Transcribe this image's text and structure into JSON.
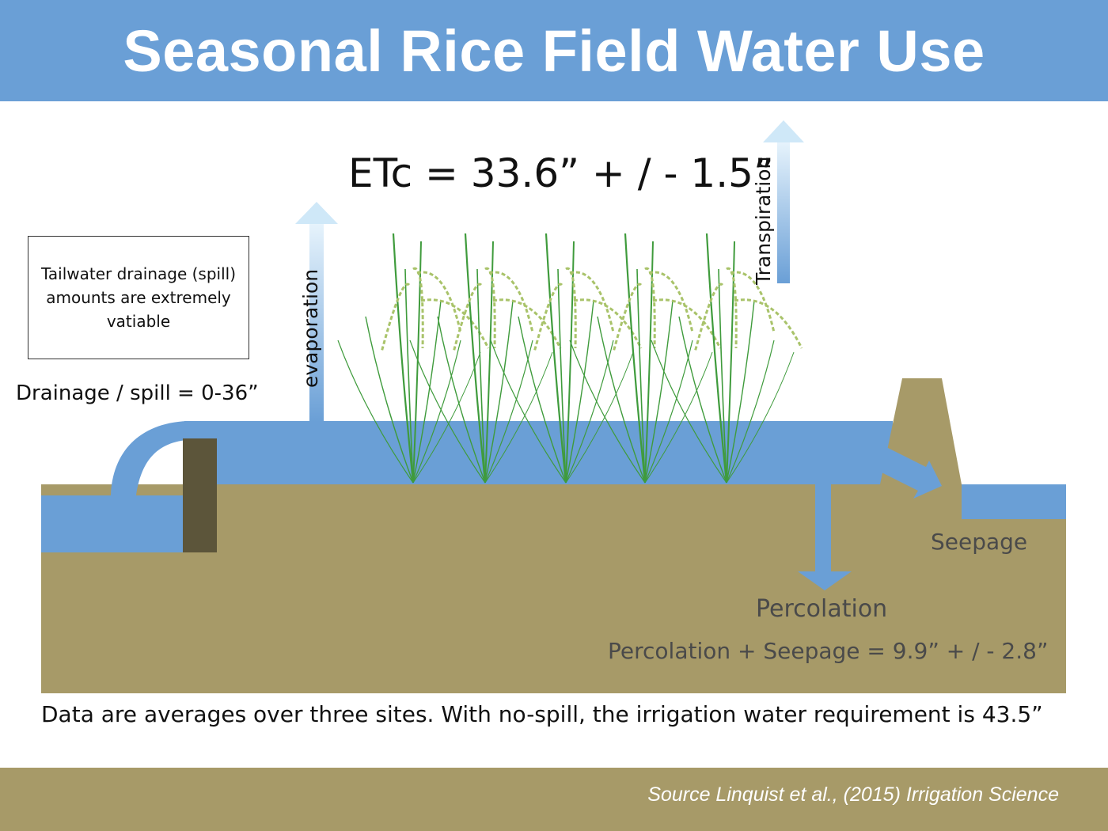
{
  "title": "Seasonal Rice Field Water Use",
  "etc_label": "ETc = 33.6” + / - 1.5”",
  "evaporation_label": "evaporation",
  "transpiration_label": "Transpiration",
  "note": "Tailwater drainage (spill) amounts are extremely vatiable",
  "drainage_label": "Drainage / spill = 0-36”",
  "seepage_label": "Seepage",
  "percolation_label": "Percolation",
  "perc_seep_label": "Percolation + Seepage = 9.9” + / - 2.8”",
  "caption": "Data are averages over three sites. With no-spill, the irrigation water requirement is 43.5”",
  "source": "Source Linquist et al., (2015) Irrigation Science",
  "colors": {
    "header_blue": "#6a9fd6",
    "water_blue": "#6a9fd6",
    "soil": "#a79a68",
    "gate": "#5c553a",
    "plant_green": "#3f9b3c",
    "grain": "#a9c36a"
  },
  "icons": [
    "up-arrow-icon",
    "down-arrow-icon",
    "diagonal-arrow-icon",
    "rice-plant-icon"
  ]
}
